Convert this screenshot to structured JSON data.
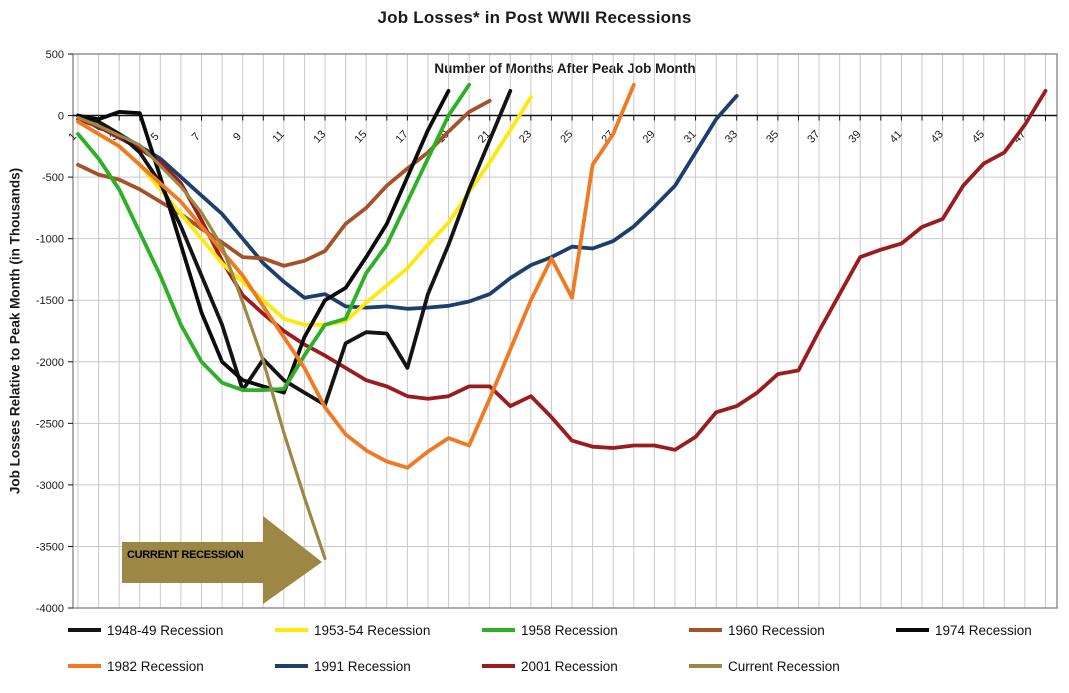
{
  "title": "Job Losses* in Post WWII Recessions",
  "annotation": {
    "label": "CURRENT RECESSION",
    "color": "#9c8745",
    "text_color": "#000000"
  },
  "axes": {
    "x_title": "Number of Months After Peak Job Month",
    "y_title": "Job Losses Relative to Peak Month (in Thousands)"
  },
  "chart_data": {
    "type": "line",
    "title": "Job Losses* in Post WWII Recessions",
    "xlabel": "Number of Months After Peak Job Month",
    "ylabel": "Job Losses Relative to Peak Month (in Thousands)",
    "xlim": [
      0,
      48
    ],
    "ylim": [
      -4000,
      500
    ],
    "x_ticks": [
      1,
      3,
      5,
      7,
      9,
      11,
      13,
      15,
      17,
      19,
      21,
      23,
      25,
      27,
      29,
      31,
      33,
      35,
      37,
      39,
      41,
      43,
      45,
      47
    ],
    "y_ticks": [
      500,
      0,
      -500,
      -1000,
      -1500,
      -2000,
      -2500,
      -3000,
      -3500,
      -4000
    ],
    "grid": true,
    "legend_position": "bottom",
    "series": [
      {
        "name": "1948-49 Recession",
        "color": "#141414",
        "z": 5,
        "start_month": 1,
        "values": [
          0,
          -50,
          -150,
          -300,
          -550,
          -900,
          -1300,
          -1700,
          -2230,
          -1980,
          -2150,
          -2250,
          -2350,
          -1850,
          -1760,
          -1770,
          -2050,
          -1450,
          -1050,
          -600,
          -200,
          200
        ]
      },
      {
        "name": "1953-54 Recession",
        "color": "#ffe80a",
        "z": 4,
        "start_month": 1,
        "values": [
          -50,
          -150,
          -250,
          -400,
          -600,
          -800,
          -1000,
          -1200,
          -1350,
          -1500,
          -1650,
          -1700,
          -1700,
          -1670,
          -1520,
          -1380,
          -1240,
          -1050,
          -870,
          -620,
          -380,
          -120,
          150
        ]
      },
      {
        "name": "1958 Recession",
        "color": "#2db025",
        "z": 7,
        "start_month": 1,
        "values": [
          -150,
          -350,
          -600,
          -950,
          -1300,
          -1700,
          -2000,
          -2170,
          -2230,
          -2230,
          -2220,
          -1950,
          -1700,
          -1650,
          -1280,
          -1050,
          -700,
          -350,
          0,
          250
        ]
      },
      {
        "name": "1960 Recession",
        "color": "#a5522b",
        "z": 2,
        "start_month": 1,
        "values": [
          -400,
          -480,
          -520,
          -600,
          -700,
          -800,
          -920,
          -1030,
          -1150,
          -1160,
          -1220,
          -1180,
          -1100,
          -880,
          -750,
          -570,
          -430,
          -300,
          -130,
          30,
          120
        ]
      },
      {
        "name": "1974 Recession",
        "color": "#0a0a0a",
        "z": 6,
        "start_month": 1,
        "values": [
          0,
          -30,
          30,
          20,
          -500,
          -1050,
          -1600,
          -2000,
          -2150,
          -2200,
          -2250,
          -1800,
          -1500,
          -1400,
          -1150,
          -880,
          -500,
          -120,
          200
        ]
      },
      {
        "name": "1982 Recession",
        "color": "#f07a22",
        "z": 8,
        "start_month": 1,
        "values": [
          -50,
          -150,
          -250,
          -400,
          -550,
          -700,
          -900,
          -1100,
          -1300,
          -1550,
          -1800,
          -2050,
          -2370,
          -2590,
          -2720,
          -2810,
          -2860,
          -2730,
          -2620,
          -2680,
          -2300,
          -1900,
          -1500,
          -1160,
          -1480,
          -400,
          -150,
          250
        ]
      },
      {
        "name": "1991 Recession",
        "color": "#1d3f6e",
        "z": 1,
        "start_month": 1,
        "values": [
          0,
          -100,
          -150,
          -250,
          -350,
          -500,
          -650,
          -800,
          -1000,
          -1200,
          -1350,
          -1480,
          -1450,
          -1550,
          -1560,
          -1550,
          -1570,
          -1560,
          -1545,
          -1510,
          -1450,
          -1320,
          -1215,
          -1150,
          -1065,
          -1080,
          -1020,
          -900,
          -740,
          -570,
          -300,
          -30,
          160
        ]
      },
      {
        "name": "2001 Recession",
        "color": "#9b1c1f",
        "z": 3,
        "start_month": 1,
        "values": [
          -30,
          -90,
          -180,
          -270,
          -380,
          -550,
          -850,
          -1180,
          -1460,
          -1610,
          -1750,
          -1860,
          -1950,
          -2050,
          -2150,
          -2200,
          -2280,
          -2300,
          -2280,
          -2200,
          -2200,
          -2360,
          -2280,
          -2450,
          -2640,
          -2690,
          -2700,
          -2680,
          -2680,
          -2715,
          -2610,
          -2410,
          -2360,
          -2250,
          -2100,
          -2070,
          -1750,
          -1450,
          -1150,
          -1090,
          -1040,
          -905,
          -840,
          -570,
          -390,
          -300,
          -75,
          200
        ]
      },
      {
        "name": "Current Recession",
        "color": "#9c8745",
        "z": 9,
        "start_month": 1,
        "values": [
          -17,
          -83,
          -161,
          -240,
          -407,
          -578,
          -788,
          -1063,
          -1516,
          -1995,
          -2578,
          -3102,
          -3598
        ]
      }
    ]
  }
}
